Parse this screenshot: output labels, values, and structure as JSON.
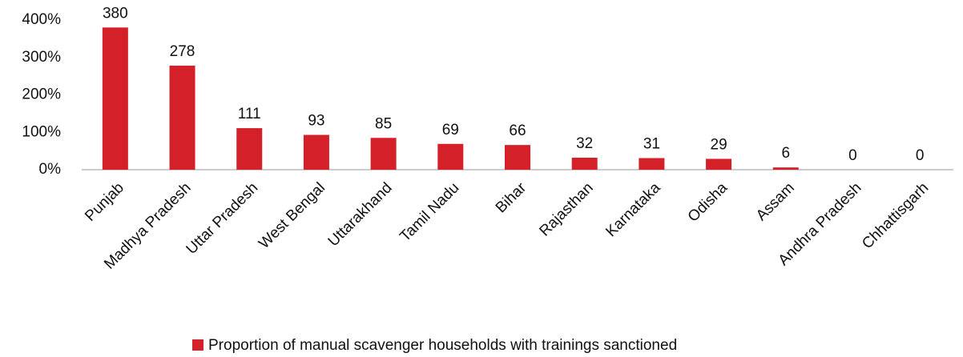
{
  "chart_data": {
    "type": "bar",
    "categories": [
      "Punjab",
      "Madhya Pradesh",
      "Uttar Pradesh",
      "West Bengal",
      "Uttarakhand",
      "Tamil Nadu",
      "Bihar",
      "Rajasthan",
      "Karnataka",
      "Odisha",
      "Assam",
      "Andhra Pradesh",
      "Chhattisgarh"
    ],
    "series": [
      {
        "name": "Proportion of manual scavenger households with trainings sanctioned",
        "color": "#d32029",
        "values": [
          380,
          278,
          111,
          93,
          85,
          69,
          66,
          32,
          31,
          29,
          6,
          0,
          0
        ]
      }
    ],
    "ylim": [
      0,
      400
    ],
    "yticks": [
      {
        "value": 0,
        "label": "0%"
      },
      {
        "value": 100,
        "label": "100%"
      },
      {
        "value": 200,
        "label": "200%"
      },
      {
        "value": 300,
        "label": "300%"
      },
      {
        "value": 400,
        "label": "400%"
      }
    ],
    "grid": false,
    "legend": "bottom"
  }
}
